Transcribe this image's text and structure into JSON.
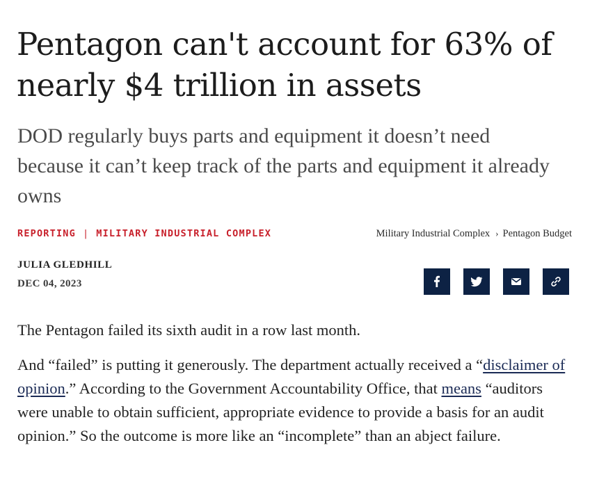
{
  "article": {
    "headline": "Pentagon can't account for 63% of nearly $4 trillion in assets",
    "subheadline": "DOD regularly buys parts and equipment it doesn’t need because it can’t keep track of the parts and equipment it already owns",
    "tags": {
      "primary": "REPORTING",
      "separator": "|",
      "secondary": "MILITARY INDUSTRIAL COMPLEX"
    },
    "breadcrumb": {
      "first": "Military Industrial Complex",
      "chevron": "›",
      "second": "Pentagon Budget"
    },
    "author": "JULIA GLEDHILL",
    "date": "DEC 04, 2023",
    "share": {
      "icons": [
        "facebook-icon",
        "twitter-icon",
        "email-icon",
        "link-icon"
      ],
      "button_color": "#0d2244"
    },
    "body": {
      "p1": "The Pentagon failed its sixth audit in a row last month.",
      "p2_a": "And “failed” is putting it generously. The department actually received a “",
      "p2_link": "disclaimer of opinion",
      "p2_b": ".” According to the Government Accountability Office, that ",
      "p2_link2": "means",
      "p2_c": " “auditors were unable to obtain sufficient, appropriate evidence to provide a basis for an audit opinion.” So the outcome is more like an “incomplete” than an abject failure."
    }
  },
  "colors": {
    "tag_red": "#c8202b",
    "navy": "#0d2244",
    "text": "#222222"
  }
}
